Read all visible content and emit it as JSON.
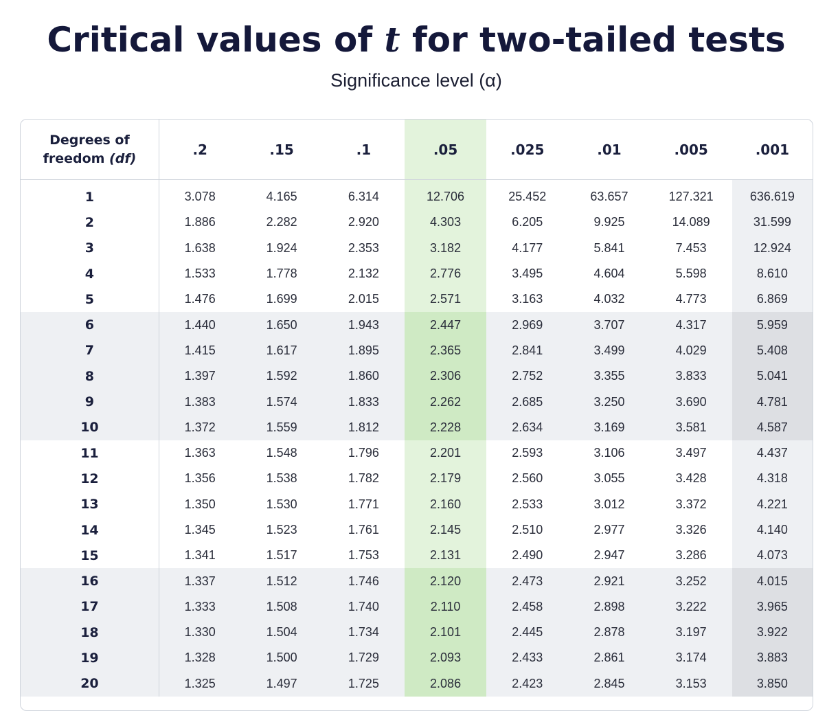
{
  "chart_data": {
    "type": "table",
    "title": {
      "before": "Critical values of ",
      "italic": "t",
      "after": " for two-tailed tests"
    },
    "subtitle": "Significance level (α)",
    "row_header": {
      "line1": "Degrees of",
      "line2_text": "freedom ",
      "line2_italic": "(df)"
    },
    "columns": [
      ".2",
      ".15",
      ".1",
      ".05",
      ".025",
      ".01",
      ".005",
      ".001"
    ],
    "highlight_column": ".05",
    "rows": [
      {
        "df": "1",
        "values": [
          "3.078",
          "4.165",
          "6.314",
          "12.706",
          "25.452",
          "63.657",
          "127.321",
          "636.619"
        ]
      },
      {
        "df": "2",
        "values": [
          "1.886",
          "2.282",
          "2.920",
          "4.303",
          "6.205",
          "9.925",
          "14.089",
          "31.599"
        ]
      },
      {
        "df": "3",
        "values": [
          "1.638",
          "1.924",
          "2.353",
          "3.182",
          "4.177",
          "5.841",
          "7.453",
          "12.924"
        ]
      },
      {
        "df": "4",
        "values": [
          "1.533",
          "1.778",
          "2.132",
          "2.776",
          "3.495",
          "4.604",
          "5.598",
          "8.610"
        ]
      },
      {
        "df": "5",
        "values": [
          "1.476",
          "1.699",
          "2.015",
          "2.571",
          "3.163",
          "4.032",
          "4.773",
          "6.869"
        ]
      },
      {
        "df": "6",
        "values": [
          "1.440",
          "1.650",
          "1.943",
          "2.447",
          "2.969",
          "3.707",
          "4.317",
          "5.959"
        ]
      },
      {
        "df": "7",
        "values": [
          "1.415",
          "1.617",
          "1.895",
          "2.365",
          "2.841",
          "3.499",
          "4.029",
          "5.408"
        ]
      },
      {
        "df": "8",
        "values": [
          "1.397",
          "1.592",
          "1.860",
          "2.306",
          "2.752",
          "3.355",
          "3.833",
          "5.041"
        ]
      },
      {
        "df": "9",
        "values": [
          "1.383",
          "1.574",
          "1.833",
          "2.262",
          "2.685",
          "3.250",
          "3.690",
          "4.781"
        ]
      },
      {
        "df": "10",
        "values": [
          "1.372",
          "1.559",
          "1.812",
          "2.228",
          "2.634",
          "3.169",
          "3.581",
          "4.587"
        ]
      },
      {
        "df": "11",
        "values": [
          "1.363",
          "1.548",
          "1.796",
          "2.201",
          "2.593",
          "3.106",
          "3.497",
          "4.437"
        ]
      },
      {
        "df": "12",
        "values": [
          "1.356",
          "1.538",
          "1.782",
          "2.179",
          "2.560",
          "3.055",
          "3.428",
          "4.318"
        ]
      },
      {
        "df": "13",
        "values": [
          "1.350",
          "1.530",
          "1.771",
          "2.160",
          "2.533",
          "3.012",
          "3.372",
          "4.221"
        ]
      },
      {
        "df": "14",
        "values": [
          "1.345",
          "1.523",
          "1.761",
          "2.145",
          "2.510",
          "2.977",
          "3.326",
          "4.140"
        ]
      },
      {
        "df": "15",
        "values": [
          "1.341",
          "1.517",
          "1.753",
          "2.131",
          "2.490",
          "2.947",
          "3.286",
          "4.073"
        ]
      },
      {
        "df": "16",
        "values": [
          "1.337",
          "1.512",
          "1.746",
          "2.120",
          "2.473",
          "2.921",
          "3.252",
          "4.015"
        ]
      },
      {
        "df": "17",
        "values": [
          "1.333",
          "1.508",
          "1.740",
          "2.110",
          "2.458",
          "2.898",
          "3.222",
          "3.965"
        ]
      },
      {
        "df": "18",
        "values": [
          "1.330",
          "1.504",
          "1.734",
          "2.101",
          "2.445",
          "2.878",
          "3.197",
          "3.922"
        ]
      },
      {
        "df": "19",
        "values": [
          "1.328",
          "1.500",
          "1.729",
          "2.093",
          "2.433",
          "2.861",
          "3.174",
          "3.883"
        ]
      },
      {
        "df": "20",
        "values": [
          "1.325",
          "1.497",
          "1.725",
          "2.086",
          "2.423",
          "2.845",
          "3.153",
          "3.850"
        ]
      }
    ]
  },
  "colors": {
    "title": "#14183a",
    "highlight_column": "#e3f3dc",
    "highlight_column_band": "#cfeac4",
    "row_band": "#eef0f3",
    "last_column": "#eef0f3",
    "last_column_band": "#dddfe3",
    "border": "#cfd4dc"
  }
}
